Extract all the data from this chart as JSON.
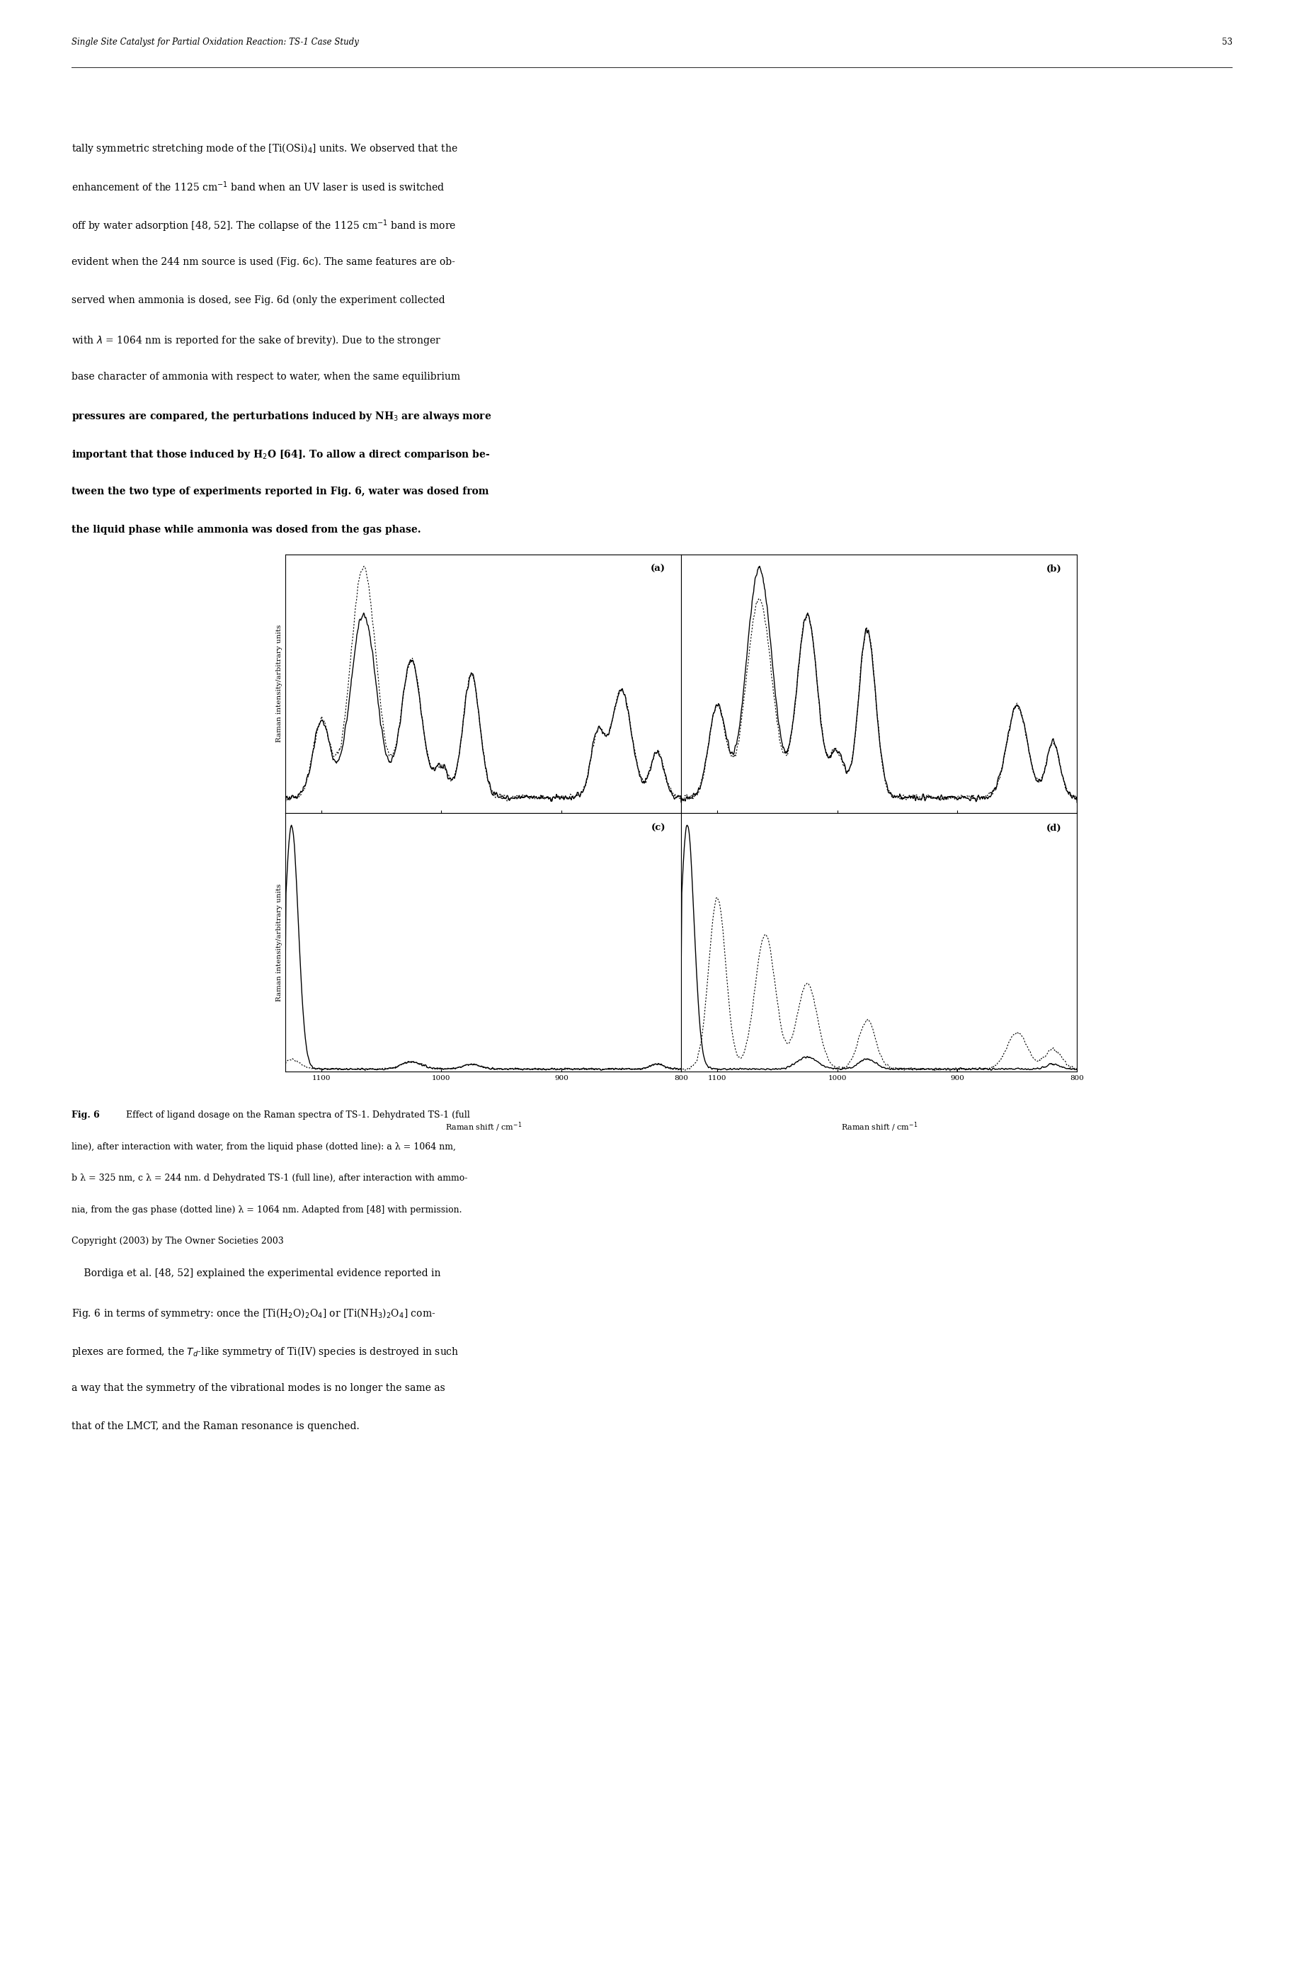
{
  "page_width": 18.33,
  "page_height": 27.76,
  "bg_color": "#ffffff",
  "header_text": "Single Site Catalyst for Partial Oxidation Reaction: TS-1 Case Study",
  "page_number": "53",
  "body_text": [
    [
      "tally symmetric stretching mode of the [Ti(OSi)",
      false
    ],
    [
      "₄",
      false
    ],
    [
      "] units. We observed that the",
      false
    ]
  ],
  "subplot_labels": [
    "(a)",
    "(b)",
    "(c)",
    "(d)"
  ],
  "ylabel": "Raman intensity/arbitrary units",
  "xlabel": "Raman shift / cm⁻¹"
}
